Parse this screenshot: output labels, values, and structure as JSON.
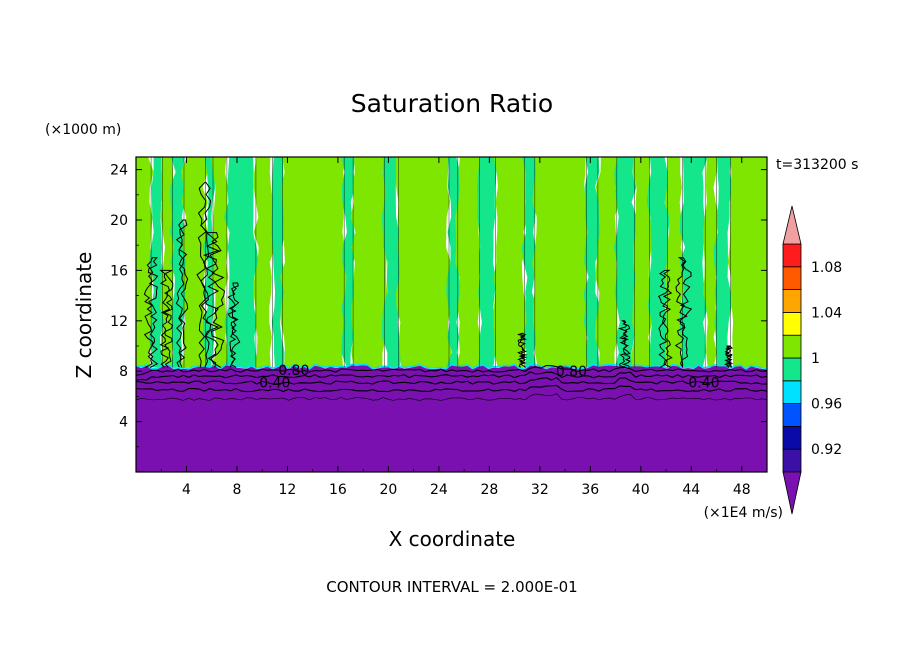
{
  "chart_data": {
    "type": "heatmap",
    "title": "Saturation Ratio",
    "xlabel": "X coordinate",
    "ylabel": "Z coordinate",
    "x_unit": "(×1E4 m/s)",
    "y_unit": "(×1000 m)",
    "xlim": [
      0,
      50
    ],
    "ylim": [
      0,
      25
    ],
    "x_ticks": [
      4,
      8,
      12,
      16,
      20,
      24,
      28,
      32,
      36,
      40,
      44,
      48
    ],
    "y_ticks": [
      4,
      8,
      12,
      16,
      20,
      24
    ],
    "time_label": "t=313200 s",
    "contour_interval_text": "CONTOUR INTERVAL = 2.000E-01",
    "contour_labels": [
      {
        "text": "0.80",
        "x": 12.5,
        "z": 8.1
      },
      {
        "text": "0.40",
        "x": 11.0,
        "z": 7.1
      },
      {
        "text": "0.80",
        "x": 34.5,
        "z": 8.0
      },
      {
        "text": "0.40",
        "x": 45.0,
        "z": 7.1
      }
    ],
    "colorbar": {
      "tick_labels": [
        "1.08",
        "1.04",
        "1",
        "0.96",
        "0.92"
      ],
      "tick_values": [
        1.08,
        1.04,
        1.0,
        0.96,
        0.92
      ],
      "levels": [
        0.9,
        0.92,
        0.94,
        0.96,
        0.98,
        1.0,
        1.02,
        1.04,
        1.06,
        1.08,
        1.1
      ],
      "colors": [
        "#3a10a6",
        "#0a0aa8",
        "#0054ff",
        "#00e0ff",
        "#14e68c",
        "#7ee600",
        "#ffff00",
        "#ffa500",
        "#ff5a00",
        "#ff1c1c"
      ],
      "under_color": "#7a10b0",
      "over_color": "#f0a0a0"
    },
    "fields": {
      "upper_band_colors": [
        "#7ee600",
        "#14e68c"
      ],
      "lower_layer_color": "#7a10b0",
      "upper_band_x_breaks": [
        0,
        1.2,
        2.1,
        2.9,
        3.8,
        5.5,
        6.1,
        7.2,
        9.5,
        10.8,
        11.6,
        16.5,
        17.2,
        19.7,
        20.8,
        24.8,
        25.5,
        27.2,
        28.5,
        30.8,
        31.6,
        35.7,
        36.6,
        38.1,
        39.5,
        40.7,
        42.1,
        43.3,
        45.1,
        46.0,
        47.1,
        50
      ],
      "top_of_lower_layer_z": 8.3
    }
  }
}
